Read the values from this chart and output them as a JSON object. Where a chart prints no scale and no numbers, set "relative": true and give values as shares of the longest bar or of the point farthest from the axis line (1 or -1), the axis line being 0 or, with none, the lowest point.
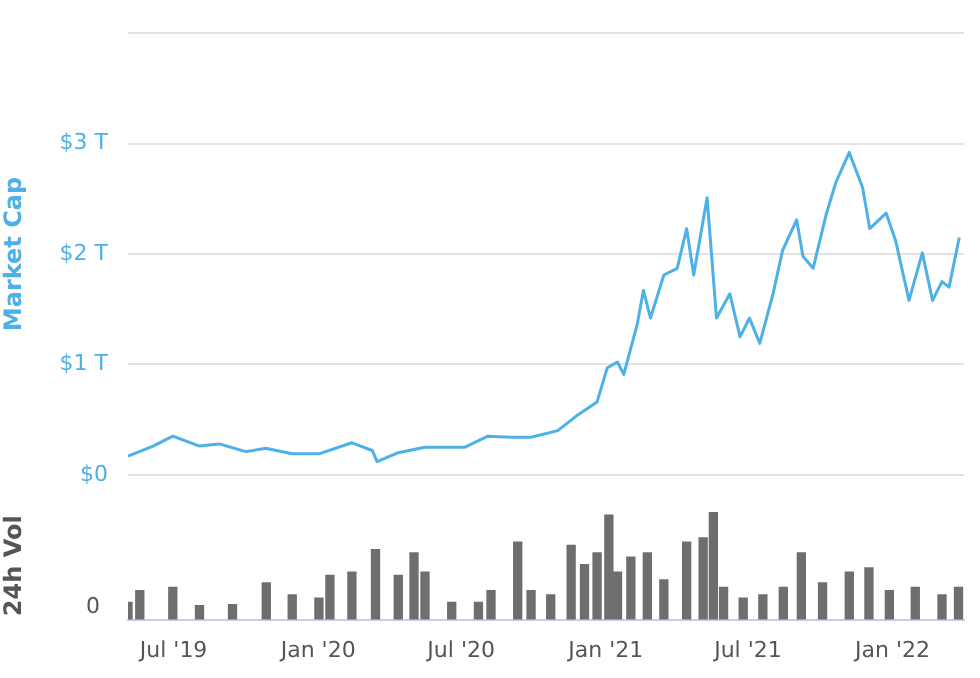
{
  "chart_data": [
    {
      "type": "line",
      "ylabel": "Market Cap",
      "xlim": [
        "2019-05-04",
        "2022-04-02"
      ],
      "ylim": [
        0,
        4
      ],
      "yticks": [
        {
          "value": 0,
          "label": "$0"
        },
        {
          "value": 1,
          "label": "$1 T"
        },
        {
          "value": 2,
          "label": "$2 T"
        },
        {
          "value": 3,
          "label": "$3 T"
        },
        {
          "value": 4,
          "label": null
        }
      ],
      "grid": "y",
      "legend": false,
      "tick_labels": "y",
      "marker": "none",
      "line_style": "solid",
      "x": [
        "2019-05-04",
        "2019-06-05",
        "2019-06-30",
        "2019-08-03",
        "2019-08-28",
        "2019-10-01",
        "2019-10-26",
        "2019-11-29",
        "2020-01-02",
        "2020-02-13",
        "2020-03-10",
        "2020-03-16",
        "2020-04-12",
        "2020-05-16",
        "2020-07-06",
        "2020-08-04",
        "2020-09-03",
        "2020-09-28",
        "2020-11-01",
        "2020-11-26",
        "2020-12-21",
        "2021-01-03",
        "2021-01-16",
        "2021-01-24",
        "2021-02-10",
        "2021-02-18",
        "2021-02-27",
        "2021-03-16",
        "2021-04-02",
        "2021-04-14",
        "2021-04-23",
        "2021-05-10",
        "2021-05-22",
        "2021-06-08",
        "2021-06-21",
        "2021-07-03",
        "2021-07-16",
        "2021-08-02",
        "2021-08-14",
        "2021-09-01",
        "2021-09-09",
        "2021-09-22",
        "2021-10-09",
        "2021-10-21",
        "2021-11-07",
        "2021-11-24",
        "2021-12-03",
        "2021-12-24",
        "2022-01-05",
        "2022-01-22",
        "2022-02-08",
        "2022-02-21",
        "2022-03-05",
        "2022-03-14",
        "2022-03-27"
      ],
      "series": [
        {
          "color": "#4db0e6",
          "values": [
            0.17,
            0.26,
            0.35,
            0.26,
            0.28,
            0.21,
            0.24,
            0.19,
            0.19,
            0.29,
            0.22,
            0.12,
            0.2,
            0.25,
            0.25,
            0.35,
            0.34,
            0.34,
            0.4,
            0.54,
            0.66,
            0.97,
            1.02,
            0.91,
            1.36,
            1.67,
            1.42,
            1.81,
            1.87,
            2.23,
            1.81,
            2.51,
            1.42,
            1.64,
            1.25,
            1.42,
            1.19,
            1.64,
            2.03,
            2.31,
            1.98,
            1.87,
            2.37,
            2.65,
            2.92,
            2.6,
            2.23,
            2.37,
            2.12,
            1.58,
            2.01,
            1.58,
            1.75,
            1.7,
            2.15
          ]
        }
      ]
    },
    {
      "type": "bar",
      "ylabel": "24h Vol",
      "relative": true,
      "legend": false,
      "grid": false,
      "tick_labels": "x",
      "annotations": [
        "0"
      ],
      "xlim": [
        "2019-05-04",
        "2022-04-02"
      ],
      "xticks": [
        {
          "value": "2019-07-01",
          "label": "Jul '19"
        },
        {
          "value": "2020-01-01",
          "label": "Jan '20"
        },
        {
          "value": "2020-07-01",
          "label": "Jul '20"
        },
        {
          "value": "2021-01-01",
          "label": "Jan '21"
        },
        {
          "value": "2021-07-01",
          "label": "Jul '21"
        },
        {
          "value": "2022-01-01",
          "label": "Jan '22"
        }
      ],
      "x": [
        "2019-05-04",
        "2019-05-19",
        "2019-06-30",
        "2019-08-03",
        "2019-09-14",
        "2019-10-27",
        "2019-11-29",
        "2020-01-02",
        "2020-01-16",
        "2020-02-13",
        "2020-03-14",
        "2020-04-12",
        "2020-05-02",
        "2020-05-16",
        "2020-06-19",
        "2020-07-23",
        "2020-08-08",
        "2020-09-11",
        "2020-09-28",
        "2020-10-23",
        "2020-11-18",
        "2020-12-05",
        "2020-12-21",
        "2021-01-05",
        "2021-01-16",
        "2021-02-02",
        "2021-02-23",
        "2021-03-16",
        "2021-04-14",
        "2021-05-05",
        "2021-05-18",
        "2021-05-31",
        "2021-06-25",
        "2021-07-20",
        "2021-08-15",
        "2021-09-07",
        "2021-10-04",
        "2021-11-07",
        "2021-12-02",
        "2021-12-28",
        "2022-01-30",
        "2022-03-05",
        "2022-03-26"
      ],
      "series": [
        {
          "color": "#6e6e6e",
          "values": [
            0.16,
            0.27,
            0.3,
            0.13,
            0.14,
            0.34,
            0.23,
            0.2,
            0.41,
            0.44,
            0.65,
            0.41,
            0.62,
            0.44,
            0.16,
            0.16,
            0.27,
            0.72,
            0.27,
            0.23,
            0.69,
            0.51,
            0.62,
            0.97,
            0.44,
            0.58,
            0.62,
            0.37,
            0.72,
            0.76,
            1,
            0.3,
            0.2,
            0.23,
            0.3,
            0.62,
            0.34,
            0.44,
            0.48,
            0.27,
            0.3,
            0.23,
            0.3
          ]
        }
      ]
    }
  ]
}
